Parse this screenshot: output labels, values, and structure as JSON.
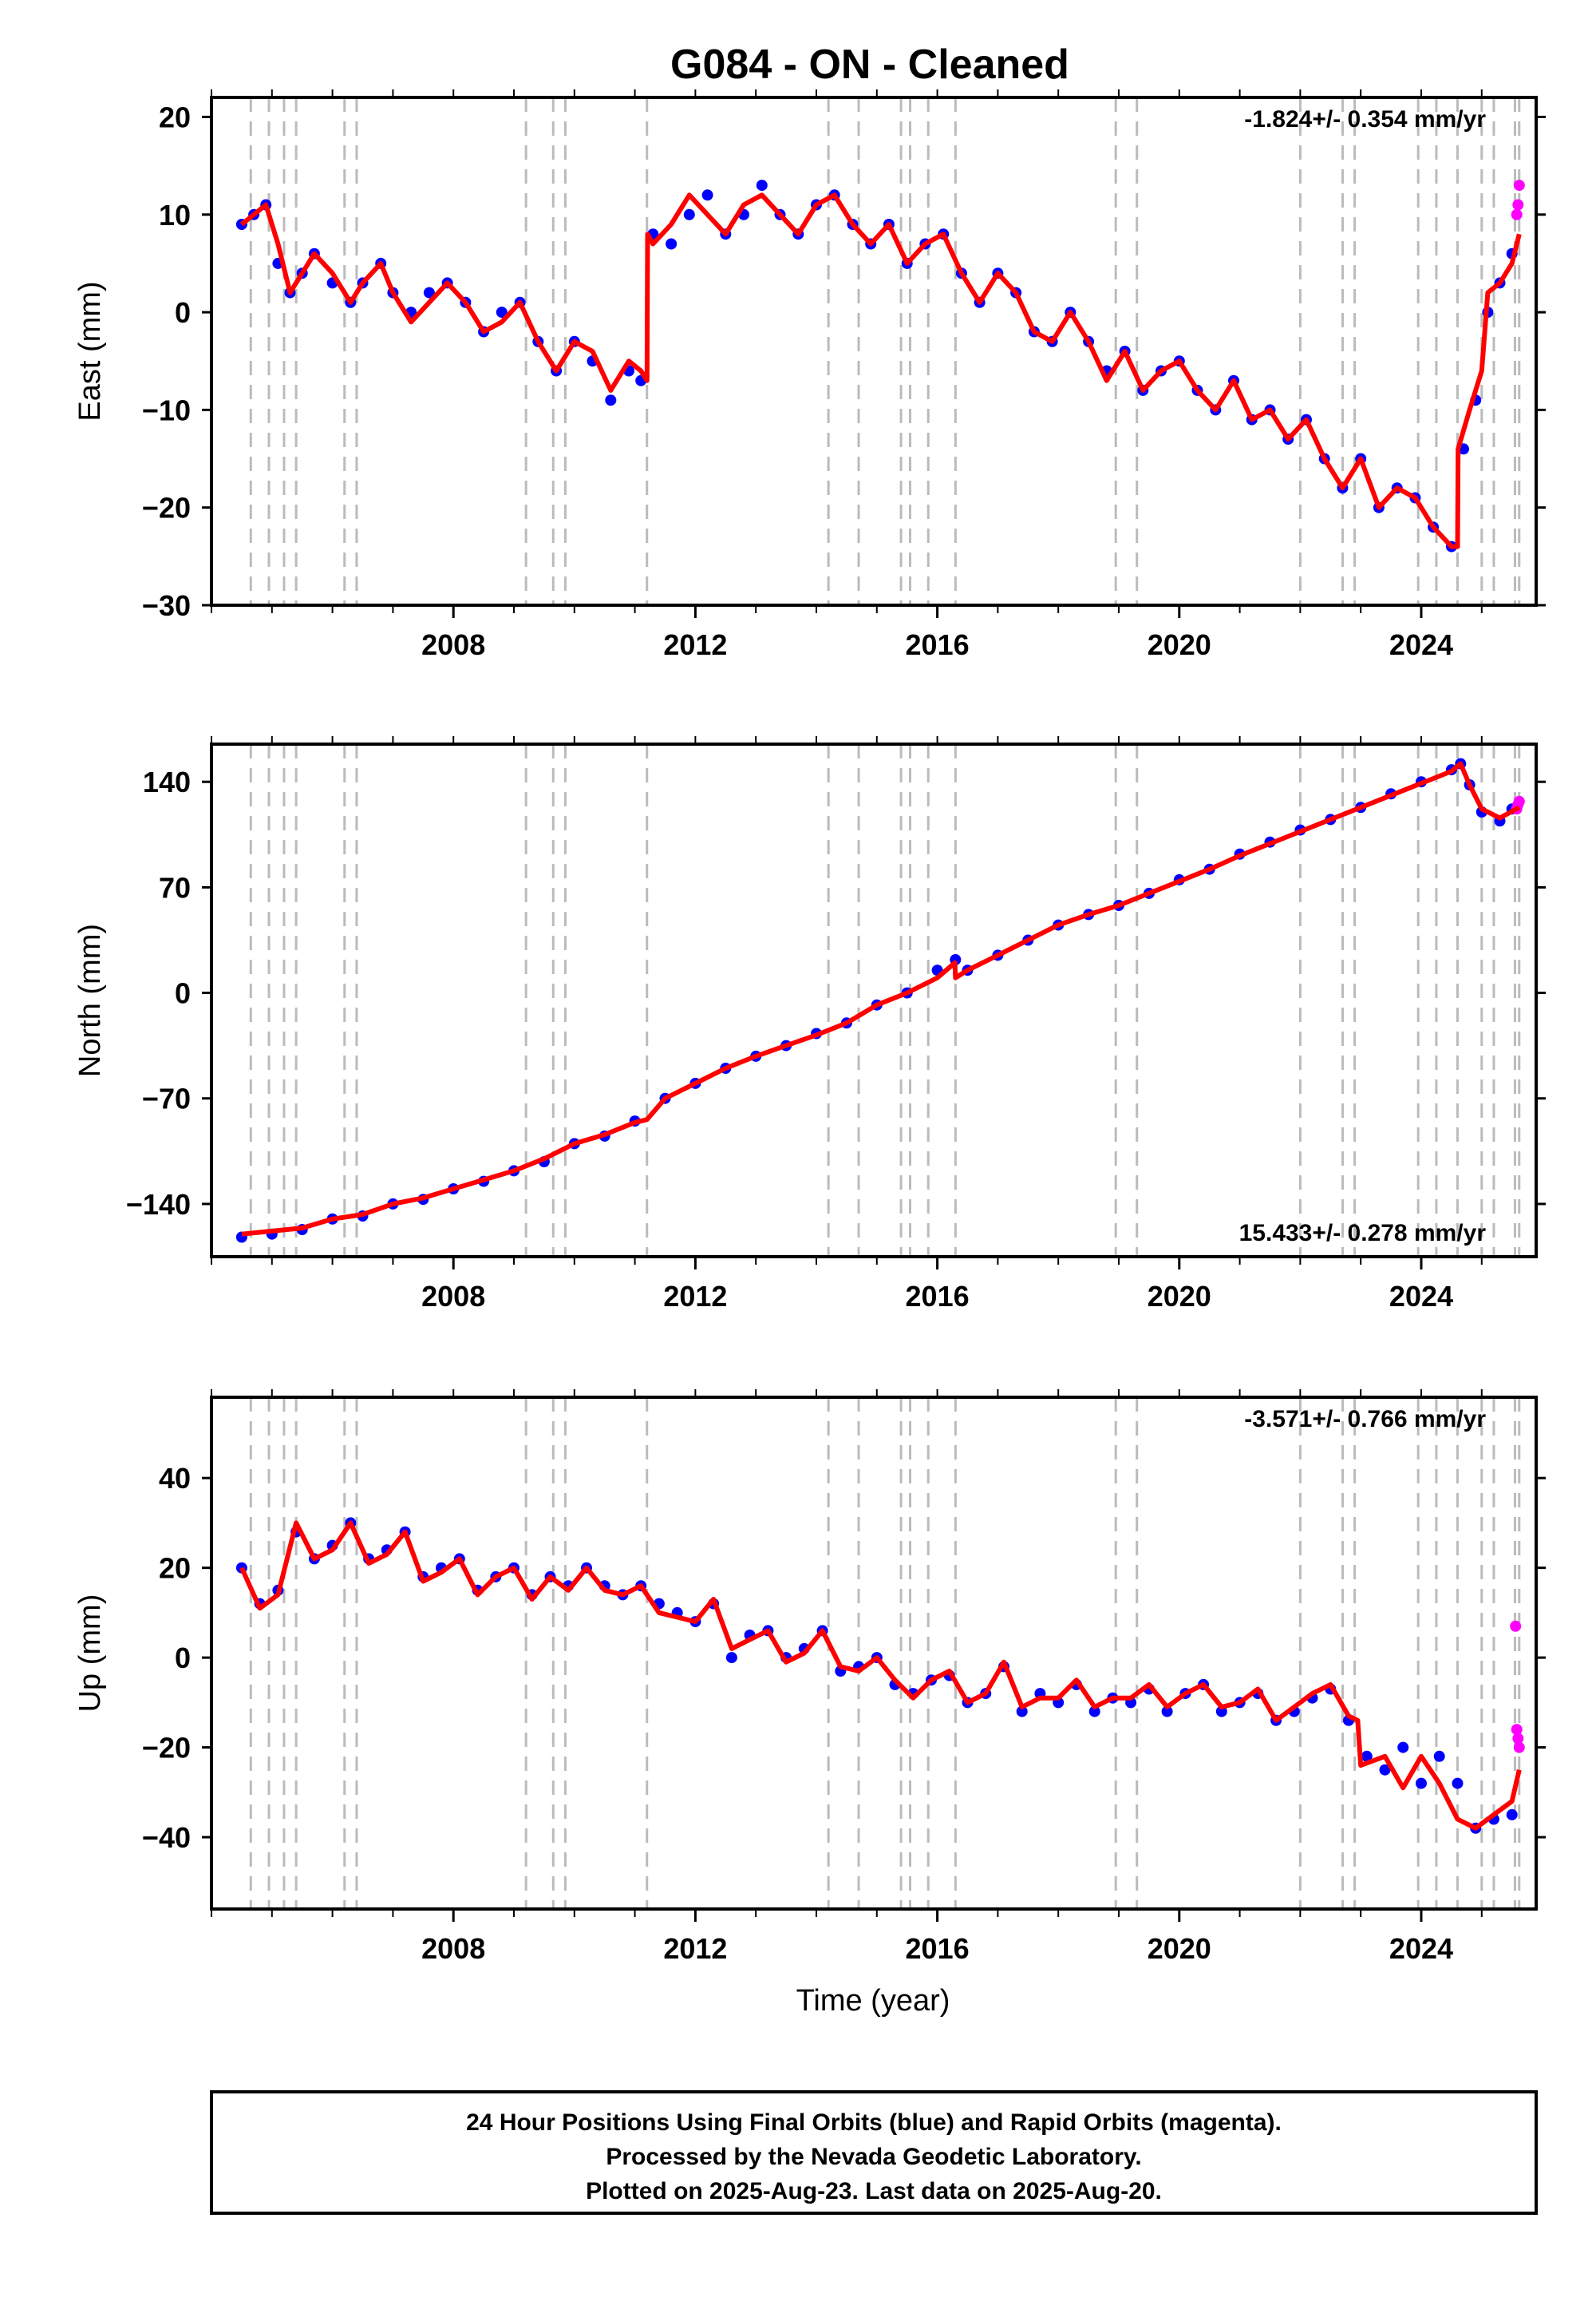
{
  "title": "G084  - ON - Cleaned",
  "xlabel": "Time (year)",
  "footer": {
    "line1": "24 Hour Positions Using Final Orbits (blue) and Rapid Orbits (magenta).",
    "line2": "Processed by the Nevada Geodetic Laboratory.",
    "line3": "Plotted on 2025-Aug-23. Last data on 2025-Aug-20."
  },
  "colors": {
    "final_orbits": "#0000ff",
    "rapid_orbits": "#ff00ff",
    "model": "#ff0000",
    "event_lines": "#bbbbbb"
  },
  "chart_data": [
    {
      "type": "scatter",
      "ylabel": "East (mm)",
      "rate_label": "-1.824+/- 0.354 mm/yr",
      "rate_position": "top-right",
      "xlim": [
        2004.0,
        2025.9
      ],
      "ylim": [
        -30,
        22
      ],
      "yticks": [
        -30,
        -20,
        -10,
        0,
        10,
        20
      ],
      "ytick_labels": [
        "−30",
        "−20",
        "−10",
        "0",
        "10",
        "20"
      ],
      "xticks": [
        2008,
        2012,
        2016,
        2020,
        2024
      ],
      "event_lines": [
        2004.65,
        2004.95,
        2005.2,
        2005.4,
        2006.2,
        2006.4,
        2009.2,
        2009.65,
        2009.85,
        2011.2,
        2014.2,
        2014.7,
        2015.4,
        2015.55,
        2015.85,
        2016.3,
        2018.95,
        2019.3,
        2022.0,
        2022.7,
        2022.9,
        2023.95,
        2024.25,
        2024.6,
        2025.0,
        2025.2,
        2025.55,
        2025.62
      ],
      "series": [
        {
          "name": "Final Orbits",
          "style": "points",
          "color": "#0000ff",
          "x": [
            2004.5,
            2004.7,
            2004.9,
            2005.1,
            2005.3,
            2005.5,
            2005.7,
            2006.0,
            2006.3,
            2006.5,
            2006.8,
            2007.0,
            2007.3,
            2007.6,
            2007.9,
            2008.2,
            2008.5,
            2008.8,
            2009.1,
            2009.4,
            2009.7,
            2010.0,
            2010.3,
            2010.6,
            2010.9,
            2011.1,
            2011.3,
            2011.6,
            2011.9,
            2012.2,
            2012.5,
            2012.8,
            2013.1,
            2013.4,
            2013.7,
            2014.0,
            2014.3,
            2014.6,
            2014.9,
            2015.2,
            2015.5,
            2015.8,
            2016.1,
            2016.4,
            2016.7,
            2017.0,
            2017.3,
            2017.6,
            2017.9,
            2018.2,
            2018.5,
            2018.8,
            2019.1,
            2019.4,
            2019.7,
            2020.0,
            2020.3,
            2020.6,
            2020.9,
            2021.2,
            2021.5,
            2021.8,
            2022.1,
            2022.4,
            2022.7,
            2023.0,
            2023.3,
            2023.6,
            2023.9,
            2024.2,
            2024.5,
            2024.7,
            2024.9,
            2025.1,
            2025.3,
            2025.5
          ],
          "y": [
            9,
            10,
            11,
            5,
            2,
            4,
            6,
            3,
            1,
            3,
            5,
            2,
            0,
            2,
            3,
            1,
            -2,
            0,
            1,
            -3,
            -6,
            -3,
            -5,
            -9,
            -6,
            -7,
            8,
            7,
            10,
            12,
            8,
            10,
            13,
            10,
            8,
            11,
            12,
            9,
            7,
            9,
            5,
            7,
            8,
            4,
            1,
            4,
            2,
            -2,
            -3,
            0,
            -3,
            -6,
            -4,
            -8,
            -6,
            -5,
            -8,
            -10,
            -7,
            -11,
            -10,
            -13,
            -11,
            -15,
            -18,
            -15,
            -20,
            -18,
            -19,
            -22,
            -24,
            -14,
            -9,
            0,
            3,
            6
          ]
        },
        {
          "name": "Rapid Orbits",
          "style": "points",
          "color": "#ff00ff",
          "x": [
            2025.58,
            2025.6,
            2025.62
          ],
          "y": [
            10,
            11,
            13
          ]
        },
        {
          "name": "Model",
          "style": "line",
          "color": "#ff0000",
          "x": [
            2004.5,
            2004.7,
            2004.9,
            2005.1,
            2005.3,
            2005.5,
            2005.7,
            2006.0,
            2006.3,
            2006.5,
            2006.8,
            2007.0,
            2007.3,
            2007.6,
            2007.9,
            2008.2,
            2008.5,
            2008.8,
            2009.1,
            2009.4,
            2009.7,
            2010.0,
            2010.3,
            2010.6,
            2010.9,
            2011.1,
            2011.2,
            2011.21,
            2011.3,
            2011.6,
            2011.9,
            2012.2,
            2012.5,
            2012.8,
            2013.1,
            2013.4,
            2013.7,
            2014.0,
            2014.3,
            2014.6,
            2014.9,
            2015.2,
            2015.5,
            2015.8,
            2016.1,
            2016.4,
            2016.7,
            2017.0,
            2017.3,
            2017.6,
            2017.9,
            2018.2,
            2018.5,
            2018.8,
            2019.1,
            2019.4,
            2019.7,
            2020.0,
            2020.3,
            2020.6,
            2020.9,
            2021.2,
            2021.5,
            2021.8,
            2022.1,
            2022.4,
            2022.7,
            2023.0,
            2023.3,
            2023.6,
            2023.9,
            2024.2,
            2024.5,
            2024.6,
            2024.61,
            2024.8,
            2025.0,
            2025.1,
            2025.3,
            2025.5,
            2025.62
          ],
          "y": [
            9,
            10,
            11,
            7,
            2,
            4,
            6,
            4,
            1,
            3,
            5,
            2,
            -1,
            1,
            3,
            1,
            -2,
            -1,
            1,
            -3,
            -6,
            -3,
            -4,
            -8,
            -5,
            -6,
            -7,
            8,
            7,
            9,
            12,
            10,
            8,
            11,
            12,
            10,
            8,
            11,
            12,
            9,
            7,
            9,
            5,
            7,
            8,
            4,
            1,
            4,
            2,
            -2,
            -3,
            0,
            -3,
            -7,
            -4,
            -8,
            -6,
            -5,
            -8,
            -10,
            -7,
            -11,
            -10,
            -13,
            -11,
            -15,
            -18,
            -15,
            -20,
            -18,
            -19,
            -22,
            -24,
            -24,
            -14,
            -10,
            -6,
            2,
            3,
            5,
            8
          ]
        }
      ]
    },
    {
      "type": "scatter",
      "ylabel": "North (mm)",
      "rate_label": "15.433+/- 0.278 mm/yr",
      "rate_position": "bottom-right",
      "xlim": [
        2004.0,
        2025.9
      ],
      "ylim": [
        -175,
        165
      ],
      "yticks": [
        -140,
        -70,
        0,
        70,
        140
      ],
      "ytick_labels": [
        "−140",
        "−70",
        "0",
        "70",
        "140"
      ],
      "xticks": [
        2008,
        2012,
        2016,
        2020,
        2024
      ],
      "event_lines": [
        2004.65,
        2004.95,
        2005.2,
        2005.4,
        2006.2,
        2006.4,
        2009.2,
        2009.65,
        2009.85,
        2011.2,
        2014.2,
        2014.7,
        2015.4,
        2015.55,
        2015.85,
        2016.3,
        2018.95,
        2019.3,
        2022.0,
        2022.7,
        2022.9,
        2023.95,
        2024.25,
        2024.6,
        2025.0,
        2025.2,
        2025.55,
        2025.62
      ],
      "series": [
        {
          "name": "Final Orbits",
          "style": "points",
          "color": "#0000ff",
          "x": [
            2004.5,
            2005.0,
            2005.5,
            2006.0,
            2006.5,
            2007.0,
            2007.5,
            2008.0,
            2008.5,
            2009.0,
            2009.5,
            2010.0,
            2010.5,
            2011.0,
            2011.5,
            2012.0,
            2012.5,
            2013.0,
            2013.5,
            2014.0,
            2014.5,
            2015.0,
            2015.5,
            2016.0,
            2016.3,
            2016.5,
            2017.0,
            2017.5,
            2018.0,
            2018.5,
            2019.0,
            2019.5,
            2020.0,
            2020.5,
            2021.0,
            2021.5,
            2022.0,
            2022.5,
            2023.0,
            2023.5,
            2024.0,
            2024.5,
            2024.65,
            2024.8,
            2025.0,
            2025.3,
            2025.5
          ],
          "y": [
            -162,
            -160,
            -157,
            -150,
            -148,
            -140,
            -137,
            -130,
            -125,
            -118,
            -112,
            -100,
            -95,
            -85,
            -70,
            -60,
            -50,
            -42,
            -35,
            -27,
            -20,
            -8,
            0,
            15,
            22,
            15,
            25,
            35,
            45,
            52,
            58,
            66,
            75,
            82,
            92,
            100,
            108,
            115,
            123,
            132,
            140,
            148,
            152,
            138,
            120,
            114,
            122
          ]
        },
        {
          "name": "Rapid Orbits",
          "style": "points",
          "color": "#ff00ff",
          "x": [
            2025.58,
            2025.6,
            2025.62
          ],
          "y": [
            122,
            125,
            127
          ]
        },
        {
          "name": "Model",
          "style": "line",
          "color": "#ff0000",
          "x": [
            2004.5,
            2005.0,
            2005.5,
            2006.0,
            2006.5,
            2007.0,
            2007.5,
            2008.0,
            2008.5,
            2009.0,
            2009.5,
            2010.0,
            2010.5,
            2011.0,
            2011.2,
            2011.5,
            2012.0,
            2012.5,
            2013.0,
            2013.5,
            2014.0,
            2014.5,
            2015.0,
            2015.5,
            2016.0,
            2016.29,
            2016.3,
            2016.5,
            2017.0,
            2017.5,
            2018.0,
            2018.5,
            2019.0,
            2019.5,
            2020.0,
            2020.5,
            2021.0,
            2021.5,
            2022.0,
            2022.5,
            2023.0,
            2023.5,
            2024.0,
            2024.5,
            2024.65,
            2024.8,
            2025.0,
            2025.3,
            2025.62
          ],
          "y": [
            -160,
            -158,
            -156,
            -150,
            -147,
            -140,
            -136,
            -130,
            -124,
            -118,
            -110,
            -100,
            -94,
            -86,
            -84,
            -70,
            -60,
            -50,
            -42,
            -35,
            -28,
            -20,
            -8,
            0,
            10,
            20,
            10,
            15,
            25,
            35,
            45,
            52,
            58,
            66,
            74,
            82,
            91,
            99,
            107,
            115,
            123,
            131,
            139,
            147,
            152,
            138,
            122,
            116,
            123
          ]
        }
      ]
    },
    {
      "type": "scatter",
      "ylabel": "Up (mm)",
      "rate_label": "-3.571+/- 0.766 mm/yr",
      "rate_position": "top-right",
      "xlim": [
        2004.0,
        2025.9
      ],
      "ylim": [
        -56,
        58
      ],
      "yticks": [
        -40,
        -20,
        0,
        20,
        40
      ],
      "ytick_labels": [
        "−40",
        "−20",
        "0",
        "20",
        "40"
      ],
      "xticks": [
        2008,
        2012,
        2016,
        2020,
        2024
      ],
      "event_lines": [
        2004.65,
        2004.95,
        2005.2,
        2005.4,
        2006.2,
        2006.4,
        2009.2,
        2009.65,
        2009.85,
        2011.2,
        2014.2,
        2014.7,
        2015.4,
        2015.55,
        2015.85,
        2016.3,
        2018.95,
        2019.3,
        2022.0,
        2022.7,
        2022.9,
        2023.95,
        2024.25,
        2024.6,
        2025.0,
        2025.2,
        2025.55,
        2025.62
      ],
      "series": [
        {
          "name": "Final Orbits",
          "style": "points",
          "color": "#0000ff",
          "x": [
            2004.5,
            2004.8,
            2005.1,
            2005.4,
            2005.7,
            2006.0,
            2006.3,
            2006.6,
            2006.9,
            2007.2,
            2007.5,
            2007.8,
            2008.1,
            2008.4,
            2008.7,
            2009.0,
            2009.3,
            2009.6,
            2009.9,
            2010.2,
            2010.5,
            2010.8,
            2011.1,
            2011.4,
            2011.7,
            2012.0,
            2012.3,
            2012.6,
            2012.9,
            2013.2,
            2013.5,
            2013.8,
            2014.1,
            2014.4,
            2014.7,
            2015.0,
            2015.3,
            2015.6,
            2015.9,
            2016.2,
            2016.5,
            2016.8,
            2017.1,
            2017.4,
            2017.7,
            2018.0,
            2018.3,
            2018.6,
            2018.9,
            2019.2,
            2019.5,
            2019.8,
            2020.1,
            2020.4,
            2020.7,
            2021.0,
            2021.3,
            2021.6,
            2021.9,
            2022.2,
            2022.5,
            2022.8,
            2023.1,
            2023.4,
            2023.7,
            2024.0,
            2024.3,
            2024.6,
            2024.9,
            2025.2,
            2025.5
          ],
          "y": [
            20,
            12,
            15,
            28,
            22,
            25,
            30,
            22,
            24,
            28,
            18,
            20,
            22,
            15,
            18,
            20,
            14,
            18,
            16,
            20,
            16,
            14,
            16,
            12,
            10,
            8,
            12,
            0,
            5,
            6,
            0,
            2,
            6,
            -3,
            -2,
            0,
            -6,
            -8,
            -5,
            -4,
            -10,
            -8,
            -2,
            -12,
            -8,
            -10,
            -6,
            -12,
            -9,
            -10,
            -7,
            -12,
            -8,
            -6,
            -12,
            -10,
            -8,
            -14,
            -12,
            -9,
            -7,
            -14,
            -22,
            -25,
            -20,
            -28,
            -22,
            -28,
            -38,
            -36,
            -35
          ]
        },
        {
          "name": "Rapid Orbits",
          "style": "points",
          "color": "#ff00ff",
          "x": [
            2025.56,
            2025.58,
            2025.6,
            2025.62
          ],
          "y": [
            7,
            -16,
            -18,
            -20
          ]
        },
        {
          "name": "Model",
          "style": "line",
          "color": "#ff0000",
          "x": [
            2004.5,
            2004.8,
            2005.1,
            2005.4,
            2005.7,
            2006.0,
            2006.3,
            2006.6,
            2006.9,
            2007.2,
            2007.5,
            2007.8,
            2008.1,
            2008.4,
            2008.7,
            2009.0,
            2009.3,
            2009.6,
            2009.9,
            2010.2,
            2010.5,
            2010.8,
            2011.1,
            2011.4,
            2011.7,
            2012.0,
            2012.3,
            2012.6,
            2012.9,
            2013.2,
            2013.5,
            2013.8,
            2014.1,
            2014.4,
            2014.7,
            2015.0,
            2015.3,
            2015.6,
            2015.9,
            2016.2,
            2016.5,
            2016.8,
            2017.1,
            2017.4,
            2017.7,
            2018.0,
            2018.3,
            2018.6,
            2018.9,
            2019.2,
            2019.5,
            2019.8,
            2020.1,
            2020.4,
            2020.7,
            2021.0,
            2021.3,
            2021.6,
            2021.9,
            2022.2,
            2022.5,
            2022.8,
            2022.95,
            2023.0,
            2023.4,
            2023.7,
            2024.0,
            2024.3,
            2024.6,
            2024.9,
            2025.2,
            2025.5,
            2025.62
          ],
          "y": [
            20,
            11,
            14,
            30,
            22,
            24,
            30,
            21,
            23,
            28,
            17,
            19,
            22,
            14,
            18,
            20,
            13,
            18,
            15,
            20,
            15,
            14,
            16,
            10,
            9,
            8,
            13,
            2,
            4,
            6,
            -1,
            1,
            6,
            -2,
            -3,
            0,
            -5,
            -9,
            -5,
            -3,
            -10,
            -8,
            -1,
            -11,
            -9,
            -9,
            -5,
            -11,
            -9,
            -9,
            -6,
            -11,
            -8,
            -6,
            -11,
            -10,
            -7,
            -14,
            -11,
            -8,
            -6,
            -13,
            -14,
            -24,
            -22,
            -29,
            -22,
            -28,
            -36,
            -38,
            -35,
            -32,
            -25
          ]
        }
      ]
    }
  ]
}
